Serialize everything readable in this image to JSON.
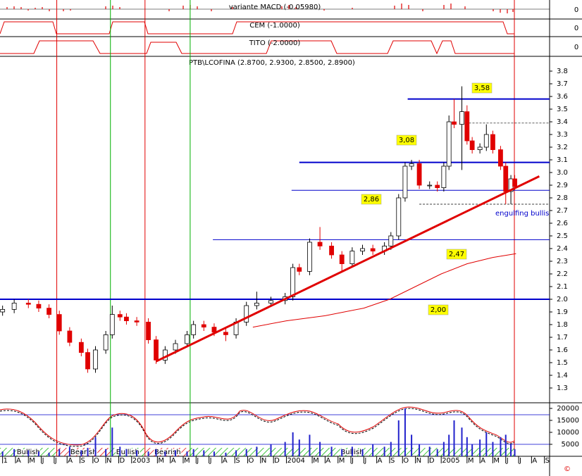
{
  "indicator_panels": [
    {
      "title": "variante MACD (-0.05980)",
      "tick": 0
    },
    {
      "title": "CEM (-1.0000)",
      "tick": 0
    },
    {
      "title": "TITO (-2.0000)",
      "tick": 0
    }
  ],
  "chart_data": [
    {
      "type": "candlestick",
      "title": "PTB\\LCOFINA (2.8700, 2.9300, 2.8500, 2.8900)",
      "x": [
        0,
        0.9,
        2.0,
        2.8,
        3.6,
        4.4,
        5.2,
        6.1,
        6.6,
        7.2,
        8.0,
        8.5,
        9.1,
        9.6,
        10.4,
        11.3,
        11.9,
        12.6,
        13.4,
        14.3,
        14.8,
        15.6,
        16.4,
        17.3,
        18.1,
        18.9,
        19.7,
        20.8,
        21.9,
        22.5,
        23.0,
        23.8,
        24.6,
        25.5,
        26.3,
        27.1,
        27.9,
        28.7,
        29.6,
        30.1,
        30.7,
        31.2,
        31.7,
        32.3,
        33.1,
        33.7,
        34.2,
        34.6,
        35.0,
        35.6,
        36.0,
        36.4,
        37.0,
        37.5,
        38.0,
        38.6,
        39.0,
        39.4,
        39.7
      ],
      "open": [
        1.9,
        1.92,
        1.97,
        1.96,
        1.93,
        1.88,
        1.75,
        1.66,
        1.58,
        1.45,
        1.6,
        1.72,
        1.88,
        1.86,
        1.83,
        1.82,
        1.68,
        1.52,
        1.6,
        1.65,
        1.72,
        1.8,
        1.78,
        1.74,
        1.72,
        1.82,
        1.95,
        1.97,
        1.99,
        2.02,
        2.25,
        2.22,
        2.45,
        2.42,
        2.35,
        2.28,
        2.38,
        2.4,
        2.38,
        2.42,
        2.5,
        2.8,
        3.05,
        3.07,
        2.9,
        2.9,
        2.88,
        3.05,
        3.4,
        3.38,
        3.48,
        3.25,
        3.18,
        3.2,
        3.3,
        3.18,
        3.05,
        2.85,
        2.95
      ],
      "high": [
        1.95,
        2.0,
        2.0,
        1.99,
        1.96,
        1.91,
        1.78,
        1.69,
        1.61,
        1.63,
        1.75,
        1.95,
        1.91,
        1.89,
        1.86,
        1.85,
        1.71,
        1.63,
        1.68,
        1.75,
        1.83,
        1.83,
        1.81,
        1.77,
        1.85,
        1.98,
        2.06,
        2.02,
        2.05,
        2.28,
        2.28,
        2.48,
        2.57,
        2.45,
        2.38,
        2.41,
        2.43,
        2.43,
        2.45,
        2.53,
        2.83,
        3.08,
        3.1,
        3.1,
        2.93,
        2.93,
        3.08,
        3.45,
        3.58,
        3.68,
        3.53,
        3.28,
        3.23,
        3.38,
        3.33,
        3.21,
        3.08,
        2.98,
        2.98
      ],
      "low": [
        1.87,
        1.89,
        1.93,
        1.9,
        1.85,
        1.72,
        1.63,
        1.55,
        1.42,
        1.42,
        1.57,
        1.69,
        1.83,
        1.8,
        1.79,
        1.65,
        1.49,
        1.49,
        1.57,
        1.62,
        1.69,
        1.75,
        1.71,
        1.67,
        1.69,
        1.79,
        1.92,
        1.94,
        1.96,
        1.99,
        2.19,
        2.19,
        2.39,
        2.32,
        2.22,
        2.25,
        2.35,
        2.35,
        2.35,
        2.39,
        2.47,
        2.77,
        3.02,
        2.87,
        2.87,
        2.85,
        2.85,
        3.02,
        3.35,
        3.02,
        3.22,
        3.15,
        3.15,
        3.17,
        3.15,
        3.02,
        2.75,
        2.75,
        2.86
      ],
      "close": [
        1.92,
        1.97,
        1.96,
        1.93,
        1.88,
        1.75,
        1.66,
        1.58,
        1.45,
        1.6,
        1.72,
        1.88,
        1.86,
        1.83,
        1.82,
        1.68,
        1.52,
        1.6,
        1.65,
        1.72,
        1.8,
        1.78,
        1.74,
        1.72,
        1.82,
        1.95,
        1.97,
        1.99,
        2.02,
        2.25,
        2.22,
        2.45,
        2.42,
        2.35,
        2.28,
        2.38,
        2.4,
        2.38,
        2.42,
        2.5,
        2.8,
        3.05,
        3.07,
        2.9,
        2.9,
        2.88,
        3.05,
        3.4,
        3.38,
        3.48,
        3.25,
        3.18,
        3.2,
        3.3,
        3.18,
        3.05,
        2.85,
        2.95,
        2.89
      ],
      "up_color": "#ffffff",
      "down_color": "#e00000",
      "xlim": [
        -0.2,
        42.4
      ],
      "xticks": [
        {
          "value": 0,
          "label": "1"
        },
        {
          "value": 1,
          "label": "A"
        },
        {
          "value": 2,
          "label": "M"
        },
        {
          "value": 3,
          "label": "J"
        },
        {
          "value": 4,
          "label": "J"
        },
        {
          "value": 5,
          "label": "A"
        },
        {
          "value": 6,
          "label": "S"
        },
        {
          "value": 7,
          "label": "O"
        },
        {
          "value": 8,
          "label": "N"
        },
        {
          "value": 9,
          "label": "D"
        },
        {
          "value": 10,
          "label": "2003"
        },
        {
          "value": 12,
          "label": "M"
        },
        {
          "value": 13,
          "label": "A"
        },
        {
          "value": 14,
          "label": "M"
        },
        {
          "value": 15,
          "label": "J"
        },
        {
          "value": 16,
          "label": "J"
        },
        {
          "value": 17,
          "label": "A"
        },
        {
          "value": 18,
          "label": "S"
        },
        {
          "value": 19,
          "label": "O"
        },
        {
          "value": 20,
          "label": "N"
        },
        {
          "value": 21,
          "label": "D"
        },
        {
          "value": 22,
          "label": "2004"
        },
        {
          "value": 24,
          "label": "M"
        },
        {
          "value": 25,
          "label": "A"
        },
        {
          "value": 26,
          "label": "M"
        },
        {
          "value": 27,
          "label": "J"
        },
        {
          "value": 28,
          "label": "J"
        },
        {
          "value": 29,
          "label": "A"
        },
        {
          "value": 30,
          "label": "S"
        },
        {
          "value": 31,
          "label": "O"
        },
        {
          "value": 32,
          "label": "N"
        },
        {
          "value": 33,
          "label": "D"
        },
        {
          "value": 34,
          "label": "2005"
        },
        {
          "value": 36,
          "label": "M"
        },
        {
          "value": 37,
          "label": "A"
        },
        {
          "value": 38,
          "label": "M"
        },
        {
          "value": 39,
          "label": "J"
        },
        {
          "value": 40,
          "label": "J"
        },
        {
          "value": 41,
          "label": "A"
        },
        {
          "value": 42,
          "label": "S"
        }
      ],
      "ylim": [
        1.3,
        3.8
      ],
      "yticks": [
        1.3,
        1.4,
        1.5,
        1.6,
        1.7,
        1.8,
        1.9,
        {
          "value": 2,
          "label": "2.0"
        },
        2.1,
        2.2,
        2.3,
        2.4,
        2.5,
        2.6,
        2.7,
        2.8,
        2.9,
        {
          "value": 3,
          "label": "3.0"
        },
        3.1,
        3.2,
        3.3,
        3.4,
        3.5,
        3.6,
        3.7,
        3.8
      ],
      "moving_average": {
        "color": "#e00000",
        "x": [
          19.4,
          22,
          25,
          28,
          30,
          32,
          34,
          36,
          38,
          39.8
        ],
        "values": [
          1.78,
          1.83,
          1.87,
          1.93,
          2.0,
          2.1,
          2.2,
          2.28,
          2.33,
          2.36
        ]
      },
      "trendline": {
        "color": "#e00000",
        "x": [
          11.9,
          41.6
        ],
        "values": [
          1.51,
          2.97
        ]
      },
      "level_color": "#0000cc",
      "levels": [
        {
          "value": 3.58,
          "label": "3,58",
          "start": 31.4,
          "thick": true
        },
        {
          "value": 3.08,
          "label": "3,08",
          "start": 23.0,
          "thick": true
        },
        {
          "value": 2.86,
          "label": "2,86",
          "start": 22.4,
          "thick": false
        },
        {
          "value": 2.47,
          "label": "2,47",
          "start": 16.3,
          "thick": false
        },
        {
          "value": 2.0,
          "label": "2,00",
          "start": -0.2,
          "thick": true
        }
      ],
      "dashed_levels": [
        {
          "value": 3.39,
          "start": 35.6
        },
        {
          "value": 2.75,
          "start": 32.3
        }
      ],
      "annotation": "engulfing bullis",
      "bullish_color": "#00b000",
      "bearish_color": "#e00000",
      "regimes": [
        {
          "label": "Bullish",
          "start": -0.2,
          "end": 4.2
        },
        {
          "label": "Bearish",
          "start": 4.2,
          "end": 8.36
        },
        {
          "label": "Bullish",
          "start": 8.36,
          "end": 11.04
        },
        {
          "label": "Bearish",
          "start": 11.04,
          "end": 14.54
        },
        {
          "label": "Bullish",
          "start": 14.54,
          "end": 39.67
        }
      ]
    },
    {
      "type": "bar",
      "x": [
        0,
        0.9,
        2.0,
        2.8,
        3.6,
        4.4,
        5.2,
        6.1,
        6.6,
        7.2,
        8.0,
        8.5,
        9.1,
        9.6,
        10.4,
        11.3,
        11.9,
        12.6,
        13.4,
        14.3,
        14.8,
        15.6,
        16.4,
        17.3,
        18.1,
        18.9,
        19.7,
        20.8,
        21.9,
        22.5,
        23.0,
        23.8,
        24.6,
        25.5,
        26.3,
        27.1,
        27.9,
        28.7,
        29.6,
        30.1,
        30.7,
        31.2,
        31.7,
        32.3,
        33.1,
        33.7,
        34.2,
        34.6,
        35.0,
        35.6,
        36.0,
        36.4,
        37.0,
        37.5,
        38.0,
        38.6,
        39.0,
        39.4,
        39.7
      ],
      "values": [
        2000,
        3000,
        2500,
        2000,
        1500,
        3000,
        4000,
        2500,
        3500,
        8000,
        3000,
        12000,
        4000,
        3000,
        2500,
        2000,
        3000,
        2000,
        2500,
        2000,
        3000,
        2500,
        2000,
        1500,
        2500,
        3000,
        4000,
        5000,
        6000,
        10000,
        7000,
        9000,
        6000,
        4000,
        3000,
        4000,
        3000,
        5000,
        4000,
        6000,
        15000,
        20000,
        9000,
        5000,
        4000,
        3000,
        6000,
        9000,
        15000,
        12000,
        8000,
        5000,
        7000,
        10000,
        6000,
        8000,
        9000,
        5000,
        3000
      ],
      "color": "#2222cc",
      "xlim": [
        -0.2,
        42.4
      ],
      "ylim": [
        0,
        20000
      ],
      "yticks": [
        5000,
        10000,
        15000,
        20000
      ]
    }
  ]
}
